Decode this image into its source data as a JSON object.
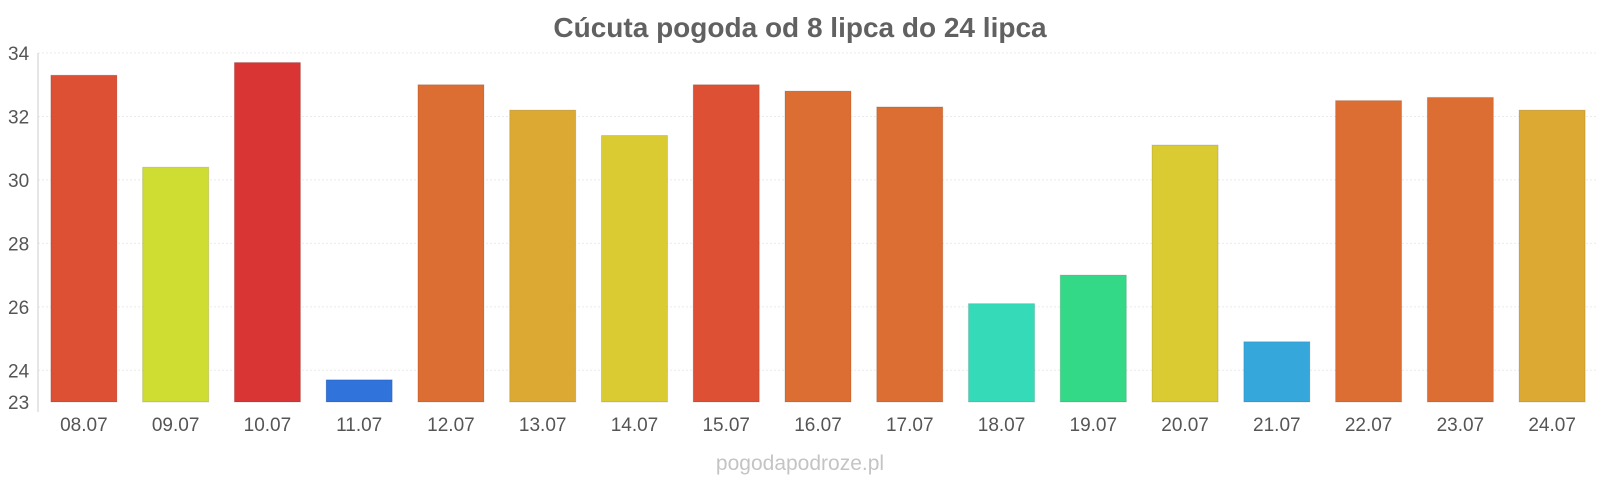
{
  "chart_data": {
    "type": "bar",
    "title": "Cúcuta pogoda od 8 lipca do 24 lipca",
    "xlabel": "",
    "ylabel": "",
    "ylim": [
      23,
      34
    ],
    "yticks": [
      23,
      24,
      26,
      28,
      30,
      32,
      34
    ],
    "grid": true,
    "legend": "none",
    "categories": [
      "08.07",
      "09.07",
      "10.07",
      "11.07",
      "12.07",
      "13.07",
      "14.07",
      "15.07",
      "16.07",
      "17.07",
      "18.07",
      "19.07",
      "20.07",
      "21.07",
      "22.07",
      "23.07",
      "24.07"
    ],
    "values": [
      33.3,
      30.4,
      33.7,
      23.7,
      33.0,
      32.2,
      31.4,
      33.0,
      32.8,
      32.3,
      26.1,
      27.0,
      31.1,
      24.9,
      32.5,
      32.6,
      32.2
    ],
    "colors": [
      "#dd5033",
      "#cfdc31",
      "#d93535",
      "#3073db",
      "#dd6e33",
      "#dca933",
      "#dbcb32",
      "#dd5033",
      "#dd6e33",
      "#dd6e33",
      "#35dbb9",
      "#33d987",
      "#dbcb32",
      "#35a7db",
      "#dd6e33",
      "#dd6e33",
      "#dca933"
    ]
  },
  "footer": {
    "credit": "pogodapodroze.pl"
  }
}
